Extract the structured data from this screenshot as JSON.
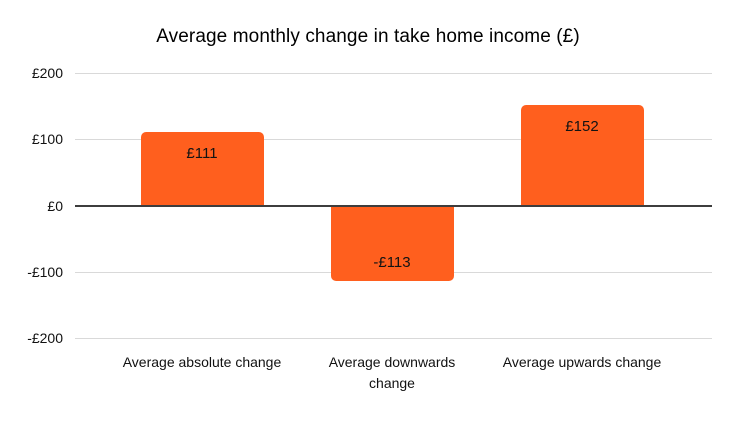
{
  "chart_data": {
    "type": "bar",
    "title": "Average monthly change in take home income (£)",
    "categories": [
      "Average absolute change",
      "Average downwards change",
      "Average upwards change"
    ],
    "values": [
      111,
      -113,
      152
    ],
    "bar_labels": [
      "£111",
      "-£113",
      "£152"
    ],
    "y_ticks": [
      {
        "value": 200,
        "label": "£200"
      },
      {
        "value": 100,
        "label": "£100"
      },
      {
        "value": 0,
        "label": "£0"
      },
      {
        "value": -100,
        "label": "-£100"
      },
      {
        "value": -200,
        "label": "-£200"
      }
    ],
    "ylim": [
      -200,
      200
    ],
    "xlabel": "",
    "ylabel": "",
    "grid": true,
    "legend_position": "none",
    "colors": {
      "bar": "#FF5F1E",
      "gridline": "#D9D9D9",
      "zero_line": "#3D3D3D",
      "title_text": "#000000",
      "tick_text": "#111111",
      "bar_label_text": "#131313",
      "background": "#FFFFFF"
    }
  }
}
